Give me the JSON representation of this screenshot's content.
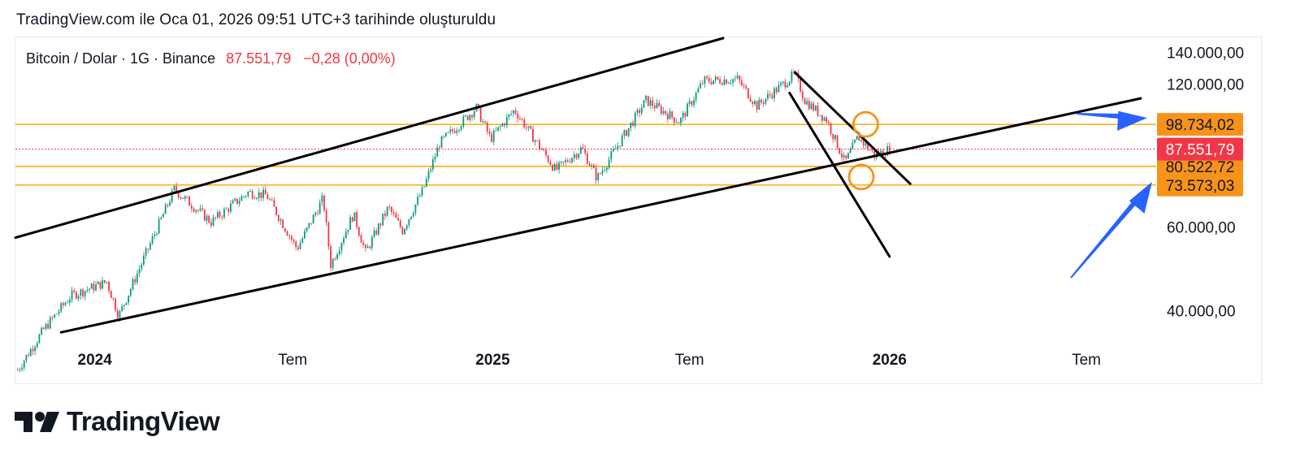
{
  "snapshot_text": "TradingView.com ile Oca 01, 2026 09:51 UTC+3 tarihinde oluşturuldu",
  "header": {
    "symbol": "Bitcoin / Dolar · 1G · Binance",
    "price": "87.551,79",
    "change": "−0,28 (0,00%)"
  },
  "brand": {
    "name": "TradingView"
  },
  "colors": {
    "up": "#089981",
    "down": "#f23645",
    "level_line": "#f7a600",
    "level_badge": "#f7931a",
    "last_price_badge": "#f23645",
    "arrow": "#2962ff",
    "trendline": "#000000"
  },
  "chart_data": {
    "type": "candlestick",
    "symbol": "Bitcoin / Dolar",
    "interval": "1G",
    "exchange": "Binance",
    "scale": "log",
    "x_range": [
      "2023-10-20",
      "2026-09-01"
    ],
    "ylim": [
      34500,
      150000
    ],
    "x_ticks": [
      {
        "date": "2024-01-01",
        "label": "2024",
        "bold": true
      },
      {
        "date": "2024-07-01",
        "label": "Tem",
        "bold": false
      },
      {
        "date": "2025-01-01",
        "label": "2025",
        "bold": true
      },
      {
        "date": "2025-07-01",
        "label": "Tem",
        "bold": false
      },
      {
        "date": "2026-01-01",
        "label": "2026",
        "bold": true
      },
      {
        "date": "2026-07-01",
        "label": "Tem",
        "bold": false
      }
    ],
    "y_ticks": [
      {
        "value": 140000,
        "label": "140.000,00"
      },
      {
        "value": 120000,
        "label": "120.000,00"
      },
      {
        "value": 60000,
        "label": "60.000,00"
      },
      {
        "value": 40000,
        "label": "40.000,00"
      }
    ],
    "price_path": [
      [
        "2023-10-20",
        29500
      ],
      [
        "2023-11-15",
        36500
      ],
      [
        "2023-12-10",
        43000
      ],
      [
        "2024-01-12",
        46000
      ],
      [
        "2024-01-23",
        39000
      ],
      [
        "2024-02-15",
        51500
      ],
      [
        "2024-03-14",
        72000
      ],
      [
        "2024-04-17",
        61500
      ],
      [
        "2024-05-21",
        71000
      ],
      [
        "2024-06-07",
        70000
      ],
      [
        "2024-07-05",
        54000
      ],
      [
        "2024-07-29",
        69000
      ],
      [
        "2024-08-05",
        50000
      ],
      [
        "2024-08-26",
        64000
      ],
      [
        "2024-09-06",
        53000
      ],
      [
        "2024-09-27",
        66000
      ],
      [
        "2024-10-10",
        59000
      ],
      [
        "2024-10-29",
        72000
      ],
      [
        "2024-11-13",
        90000
      ],
      [
        "2024-12-17",
        107000
      ],
      [
        "2024-12-30",
        92000
      ],
      [
        "2025-01-21",
        106000
      ],
      [
        "2025-02-28",
        79000
      ],
      [
        "2025-03-24",
        88000
      ],
      [
        "2025-04-07",
        76000
      ],
      [
        "2025-05-22",
        111000
      ],
      [
        "2025-06-22",
        100000
      ],
      [
        "2025-07-14",
        122000
      ],
      [
        "2025-08-14",
        123000
      ],
      [
        "2025-09-01",
        108000
      ],
      [
        "2025-10-06",
        126000
      ],
      [
        "2025-10-15",
        111000
      ],
      [
        "2025-11-04",
        101000
      ],
      [
        "2025-11-21",
        82000
      ],
      [
        "2025-12-03",
        93000
      ],
      [
        "2025-12-18",
        85000
      ],
      [
        "2026-01-01",
        87551.79
      ]
    ],
    "trendlines": [
      {
        "name": "channel-upper",
        "from": [
          "2023-10-20",
          57000
        ],
        "to": [
          "2025-08-01",
          150000
        ]
      },
      {
        "name": "channel-lower",
        "from": [
          "2023-12-01",
          36000
        ],
        "to": [
          "2026-08-20",
          112000
        ]
      },
      {
        "name": "falling-upper",
        "from": [
          "2025-10-06",
          127000
        ],
        "to": [
          "2026-01-20",
          74000
        ]
      },
      {
        "name": "falling-lower",
        "from": [
          "2025-10-01",
          115000
        ],
        "to": [
          "2026-01-01",
          52000
        ]
      }
    ],
    "levels": [
      {
        "value": 98734.02,
        "label": "98.734,02"
      },
      {
        "value": 80522.72,
        "label": "80.522,72"
      },
      {
        "value": 73573.03,
        "label": "73.573,03"
      }
    ],
    "last_price": {
      "value": 87551.79,
      "label": "87.551,79"
    },
    "highlight_circles": [
      {
        "date": "2025-12-10",
        "value": 98734.02
      },
      {
        "date": "2025-12-06",
        "value": 76500
      }
    ],
    "arrows": [
      {
        "name": "arrow-to-upper-level",
        "target_label": "98.734,02"
      },
      {
        "name": "arrow-to-lower-level",
        "target_label": "73.573,03"
      }
    ]
  }
}
